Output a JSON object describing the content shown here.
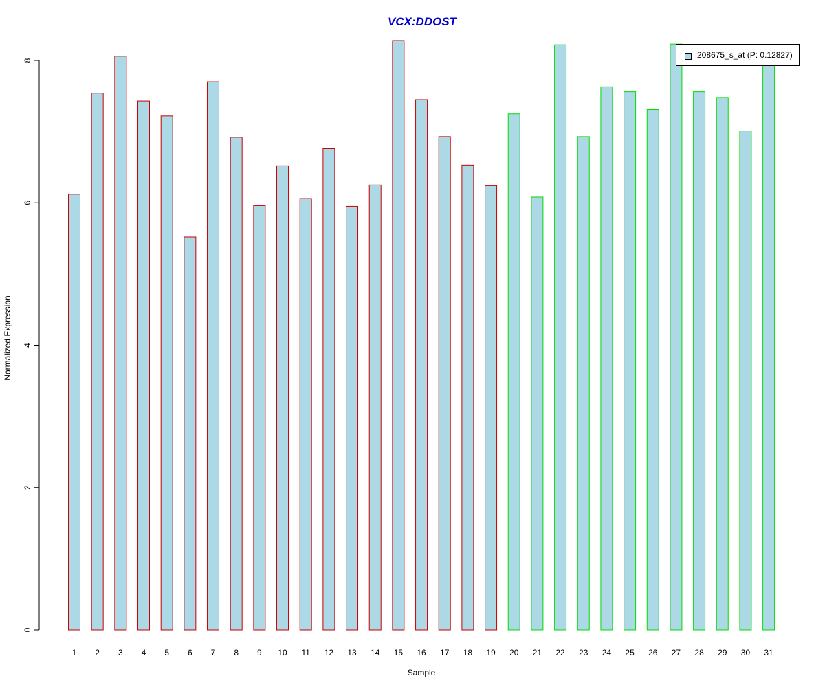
{
  "chart_data": {
    "type": "bar",
    "title": "VCX:DDOST",
    "xlabel": "Sample",
    "ylabel": "Normalized Expression",
    "categories": [
      "1",
      "2",
      "3",
      "4",
      "5",
      "6",
      "7",
      "8",
      "9",
      "10",
      "11",
      "12",
      "13",
      "14",
      "15",
      "16",
      "17",
      "18",
      "19",
      "20",
      "21",
      "22",
      "23",
      "24",
      "25",
      "26",
      "27",
      "28",
      "29",
      "30",
      "31"
    ],
    "series": [
      {
        "name": "208675_s_at (P: 0.12827)",
        "values": [
          6.12,
          7.54,
          8.06,
          7.43,
          7.22,
          5.52,
          7.7,
          6.92,
          5.96,
          6.52,
          6.06,
          6.76,
          5.95,
          6.25,
          8.28,
          7.45,
          6.93,
          6.53,
          6.24,
          7.25,
          6.08,
          8.22,
          6.93,
          7.63,
          7.56,
          7.31,
          8.23,
          7.56,
          7.48,
          7.01,
          8.0
        ]
      }
    ],
    "group_borders": [
      "#cc0000",
      "#cc0000",
      "#cc0000",
      "#cc0000",
      "#cc0000",
      "#cc0000",
      "#cc0000",
      "#cc0000",
      "#cc0000",
      "#cc0000",
      "#cc0000",
      "#cc0000",
      "#cc0000",
      "#cc0000",
      "#cc0000",
      "#cc0000",
      "#cc0000",
      "#cc0000",
      "#cc0000",
      "#00dd00",
      "#00dd00",
      "#00dd00",
      "#00dd00",
      "#00dd00",
      "#00dd00",
      "#00dd00",
      "#00dd00",
      "#00dd00",
      "#00dd00",
      "#00dd00",
      "#00dd00"
    ],
    "bar_fill": "#add8e6",
    "title_color": "#0000cc",
    "yticks": [
      0,
      2,
      4,
      6,
      8
    ],
    "ylim": [
      0,
      8.3
    ],
    "grid": false,
    "legend_position": "top-right"
  }
}
